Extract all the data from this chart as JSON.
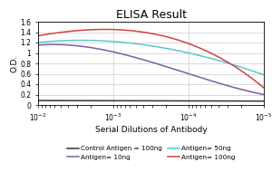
{
  "title": "ELISA Result",
  "ylabel": "O.D.",
  "xlabel": "Serial Dilutions of Antibody",
  "xlim": [
    0.01,
    1e-05
  ],
  "ylim": [
    0,
    1.6
  ],
  "yticks": [
    0,
    0.2,
    0.4,
    0.6,
    0.8,
    1.0,
    1.2,
    1.4,
    1.6
  ],
  "xticks": [
    0.01,
    0.001,
    0.0001,
    1e-05
  ],
  "lines": [
    {
      "label": "Control Antigen = 100ng",
      "color": "#333333",
      "x": [
        0.01,
        0.001,
        0.0001,
        1e-05
      ],
      "y": [
        0.085,
        0.082,
        0.078,
        0.075
      ]
    },
    {
      "label": "Antigen= 10ng",
      "color": "#7B5EA7",
      "x": [
        0.01,
        0.001,
        0.0001,
        1e-05
      ],
      "y": [
        1.15,
        1.02,
        0.6,
        0.2
      ]
    },
    {
      "label": "Antigen= 50ng",
      "color": "#5BC8C8",
      "x": [
        0.01,
        0.001,
        0.0001,
        1e-05
      ],
      "y": [
        1.2,
        1.22,
        1.0,
        0.58
      ]
    },
    {
      "label": "Antigen= 100ng",
      "color": "#CC4444",
      "x": [
        0.01,
        0.001,
        0.0001,
        1e-05
      ],
      "y": [
        1.33,
        1.45,
        1.18,
        0.33
      ]
    }
  ],
  "legend_fontsize": 5.2,
  "title_fontsize": 9,
  "label_fontsize": 6.5,
  "tick_fontsize": 5.5,
  "background_color": "#ffffff",
  "grid_color": "#cccccc"
}
